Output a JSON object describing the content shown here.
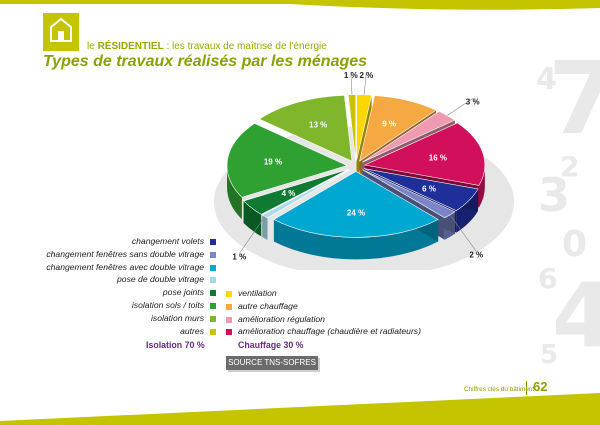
{
  "header": {
    "section_prefix": "le ",
    "section_strong": "RÉSIDENTIEL",
    "section_rest": " : les travaux de maîtrise de l'énergie",
    "title": "Types de travaux réalisés par les ménages"
  },
  "decorative_numbers": [
    "4",
    "7",
    "2",
    "3",
    "0",
    "6",
    "4",
    "5"
  ],
  "chart_data": {
    "type": "pie",
    "slices": [
      {
        "label": "ventilation",
        "value": 2,
        "color": "#ffd700"
      },
      {
        "label": "autre chauffage",
        "value": 9,
        "color": "#f6a942"
      },
      {
        "label": "amélioration régulation",
        "value": 3,
        "color": "#ee9ab0"
      },
      {
        "label": "amélioration chauffage (chaudière et radiateurs)",
        "value": 16,
        "color": "#d10f5a"
      },
      {
        "label": "changement volets",
        "value": 6,
        "color": "#1f2f9a"
      },
      {
        "label": "changement fenêtres sans double vitrage",
        "value": 2,
        "color": "#7a85c8"
      },
      {
        "label": "changement fenêtres avec double vitrage",
        "value": 24,
        "color": "#00a7d0"
      },
      {
        "label": "pose de double vitrage",
        "value": 1,
        "color": "#a8dceb"
      },
      {
        "label": "pose joints",
        "value": 4,
        "color": "#0e7a32"
      },
      {
        "label": "isolation sols / toits",
        "value": 19,
        "color": "#2fa132"
      },
      {
        "label": "isolation murs",
        "value": 13,
        "color": "#7fb62b"
      },
      {
        "label": "autres",
        "value": 1,
        "color": "#c9c400"
      }
    ],
    "value_labels": [
      "2 %",
      "9 %",
      "3 %",
      "16 %",
      "6 %",
      "2 %",
      "24 %",
      "1 %",
      "4 %",
      "19 %",
      "13 %",
      "1 %"
    ],
    "legend_left": [
      "changement volets",
      "changement fenêtres sans double vitrage",
      "changement fenêtres avec double vitrage",
      "pose de double vitrage",
      "pose joints",
      "isolation sols / toits",
      "isolation murs",
      "autres"
    ],
    "legend_right": [
      "ventilation",
      "autre chauffage",
      "amélioration régulation",
      "amélioration chauffage (chaudière et radiateurs)"
    ],
    "totals": {
      "isolation": "Isolation 70 %",
      "chauffage": "Chauffage 30 %"
    },
    "exploded": true,
    "three_d": true
  },
  "source": "SOURCE TNS-SOFRES",
  "footer": {
    "text": "Chiffres clés du bâtiment",
    "page": "62"
  },
  "colors": {
    "accent": "#8ca000",
    "band": "#c4c400",
    "totals": "#6b2a82"
  }
}
